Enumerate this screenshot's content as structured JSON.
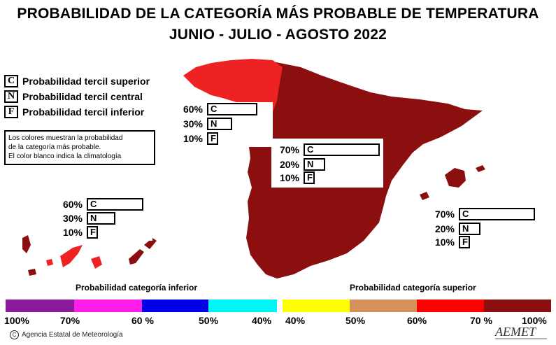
{
  "title": {
    "line1": "PROBABILIDAD DE LA CATEGORÍA MÁS PROBABLE DE TEMPERATURA",
    "line2": "JUNIO - JULIO - AGOSTO 2022"
  },
  "key": [
    {
      "letter": "C",
      "label": "Probabilidad tercil superior"
    },
    {
      "letter": "N",
      "label": "Probabilidad tercil central"
    },
    {
      "letter": "F",
      "label": "Probabilidad tercil inferior"
    }
  ],
  "note": [
    "Los colores muestran la probabilidad",
    "de la categoría más probable.",
    "El color blanco indica la climatología"
  ],
  "regions": {
    "cantabrico": {
      "C": {
        "label": "60%",
        "value": 60
      },
      "N": {
        "label": "30%",
        "value": 30
      },
      "F": {
        "label": "10%",
        "value": 10
      },
      "color": "#ee2222"
    },
    "peninsula": {
      "C": {
        "label": "70%",
        "value": 70
      },
      "N": {
        "label": "20%",
        "value": 20
      },
      "F": {
        "label": "10%",
        "value": 10
      },
      "color": "#8b0f0f"
    },
    "canarias": {
      "C": {
        "label": "60%",
        "value": 60
      },
      "N": {
        "label": "30%",
        "value": 30
      },
      "F": {
        "label": "10%",
        "value": 10
      },
      "color": "#ee2222"
    },
    "baleares": {
      "C": {
        "label": "70%",
        "value": 70
      },
      "N": {
        "label": "20%",
        "value": 20
      },
      "F": {
        "label": "10%",
        "value": 10
      },
      "color": "#8b0f0f"
    }
  },
  "scale": {
    "inferior_title": "Probabilidad categoría inferior",
    "superior_title": "Probabilidad categoría superior",
    "inferior_colors": [
      "#8a1a9a",
      "#ff1ee8",
      "#0000e6",
      "#00f5f5"
    ],
    "superior_colors": [
      "#ffff00",
      "#d4915a",
      "#ff0000",
      "#8b0f0f"
    ],
    "ticks": {
      "t100": "100%",
      "t70a": "70%",
      "t60a": "60 %",
      "t50a": "50%",
      "t40a": "40%",
      "t40b": "40%",
      "t50b": "50%",
      "t60b": "60%",
      "t70b": "70 %",
      "t100b": "100%"
    }
  },
  "credit": "Agencia Estatal de Meteorología",
  "logo_text": "AEMET"
}
